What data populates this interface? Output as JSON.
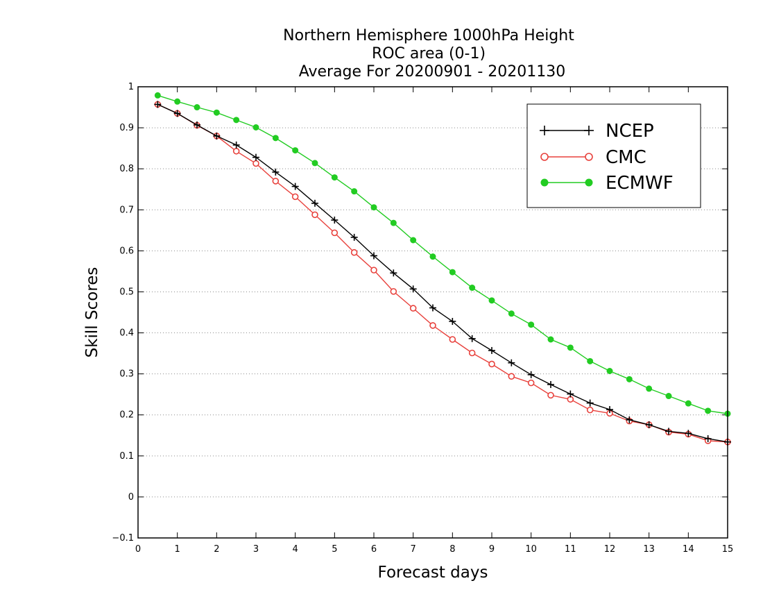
{
  "chart_data": {
    "type": "line",
    "title": [
      "Northern Hemisphere 1000hPa Height",
      "ROC area (0-1)",
      "Average For 20200901 - 20201130"
    ],
    "xlabel": "Forecast days",
    "ylabel": "Skill Scores",
    "xlim": [
      0,
      15
    ],
    "ylim": [
      -0.1,
      1
    ],
    "xticks": [
      "0",
      "1",
      "2",
      "3",
      "4",
      "5",
      "6",
      "7",
      "8",
      "9",
      "10",
      "11",
      "12",
      "13",
      "14",
      "15"
    ],
    "yticks": [
      "-0.1",
      "0",
      "0.1",
      "0.2",
      "0.3",
      "0.4",
      "0.5",
      "0.6",
      "0.7",
      "0.8",
      "0.9",
      "1"
    ],
    "grid": "horizontal dotted",
    "legend_position": "top-right",
    "x": [
      0.5,
      1,
      1.5,
      2,
      2.5,
      3,
      3.5,
      4,
      4.5,
      5,
      5.5,
      6,
      6.5,
      7,
      7.5,
      8,
      8.5,
      9,
      9.5,
      10,
      10.5,
      11,
      11.5,
      12,
      12.5,
      13,
      13.5,
      14,
      14.5,
      15
    ],
    "series": [
      {
        "name": "NCEP",
        "color": "#000000",
        "marker": "plus",
        "values": [
          0.957,
          0.935,
          0.907,
          0.88,
          0.858,
          0.828,
          0.792,
          0.757,
          0.716,
          0.675,
          0.633,
          0.588,
          0.546,
          0.507,
          0.461,
          0.428,
          0.386,
          0.357,
          0.327,
          0.298,
          0.274,
          0.251,
          0.229,
          0.213,
          0.188,
          0.176,
          0.16,
          0.155,
          0.142,
          0.134
        ]
      },
      {
        "name": "CMC",
        "color": "#e8413c",
        "marker": "open-circle",
        "values": [
          0.957,
          0.935,
          0.906,
          0.88,
          0.843,
          0.813,
          0.77,
          0.732,
          0.688,
          0.644,
          0.596,
          0.553,
          0.501,
          0.46,
          0.418,
          0.384,
          0.351,
          0.324,
          0.294,
          0.278,
          0.248,
          0.238,
          0.212,
          0.204,
          0.185,
          0.176,
          0.158,
          0.153,
          0.137,
          0.134
        ]
      },
      {
        "name": "ECMWF",
        "color": "#22cc22",
        "marker": "filled-circle",
        "values": [
          0.979,
          0.964,
          0.95,
          0.937,
          0.919,
          0.901,
          0.875,
          0.845,
          0.814,
          0.779,
          0.745,
          0.706,
          0.668,
          0.626,
          0.586,
          0.548,
          0.51,
          0.479,
          0.447,
          0.42,
          0.384,
          0.364,
          0.331,
          0.307,
          0.287,
          0.264,
          0.246,
          0.228,
          0.21,
          0.203
        ]
      }
    ]
  }
}
